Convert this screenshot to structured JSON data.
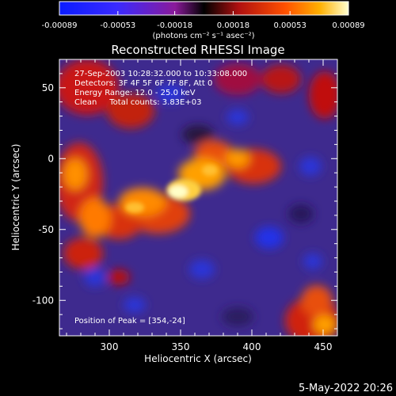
{
  "chart_data": {
    "type": "heatmap",
    "title": "Reconstructed RHESSI Image",
    "xlabel": "Heliocentric X (arcsec)",
    "ylabel": "Heliocentric Y (arcsec)",
    "xlim": [
      265,
      460
    ],
    "ylim": [
      -125,
      70
    ],
    "xticks": [
      300,
      350,
      400,
      450
    ],
    "yticks": [
      50,
      0,
      -50,
      -100
    ],
    "colorbar": {
      "range": [
        -0.00089,
        0.00089
      ],
      "tick_values": [
        -0.00089,
        -0.00053,
        -0.00018,
        0.00018,
        0.00053,
        0.00089
      ],
      "tick_labels": [
        "-0.00089",
        "-0.00053",
        "-0.00018",
        "0.00018",
        "0.00053",
        "0.00089"
      ],
      "units": "(photons cm⁻² s⁻¹ asec⁻²)"
    },
    "annotations": [
      "27-Sep-2003 10:28:32.000 to 10:33:08.000",
      "Detectors: 3F 4F 5F 6F 7F 8F, Att 0",
      "Energy Range: 12.0 - 25.0 keV",
      "Clean     Total counts: 3.83E+03"
    ],
    "peak_label": "Position of Peak = [354,-24]",
    "peak": [
      354,
      -24
    ]
  },
  "date_stamp": "5-May-2022 20:26"
}
